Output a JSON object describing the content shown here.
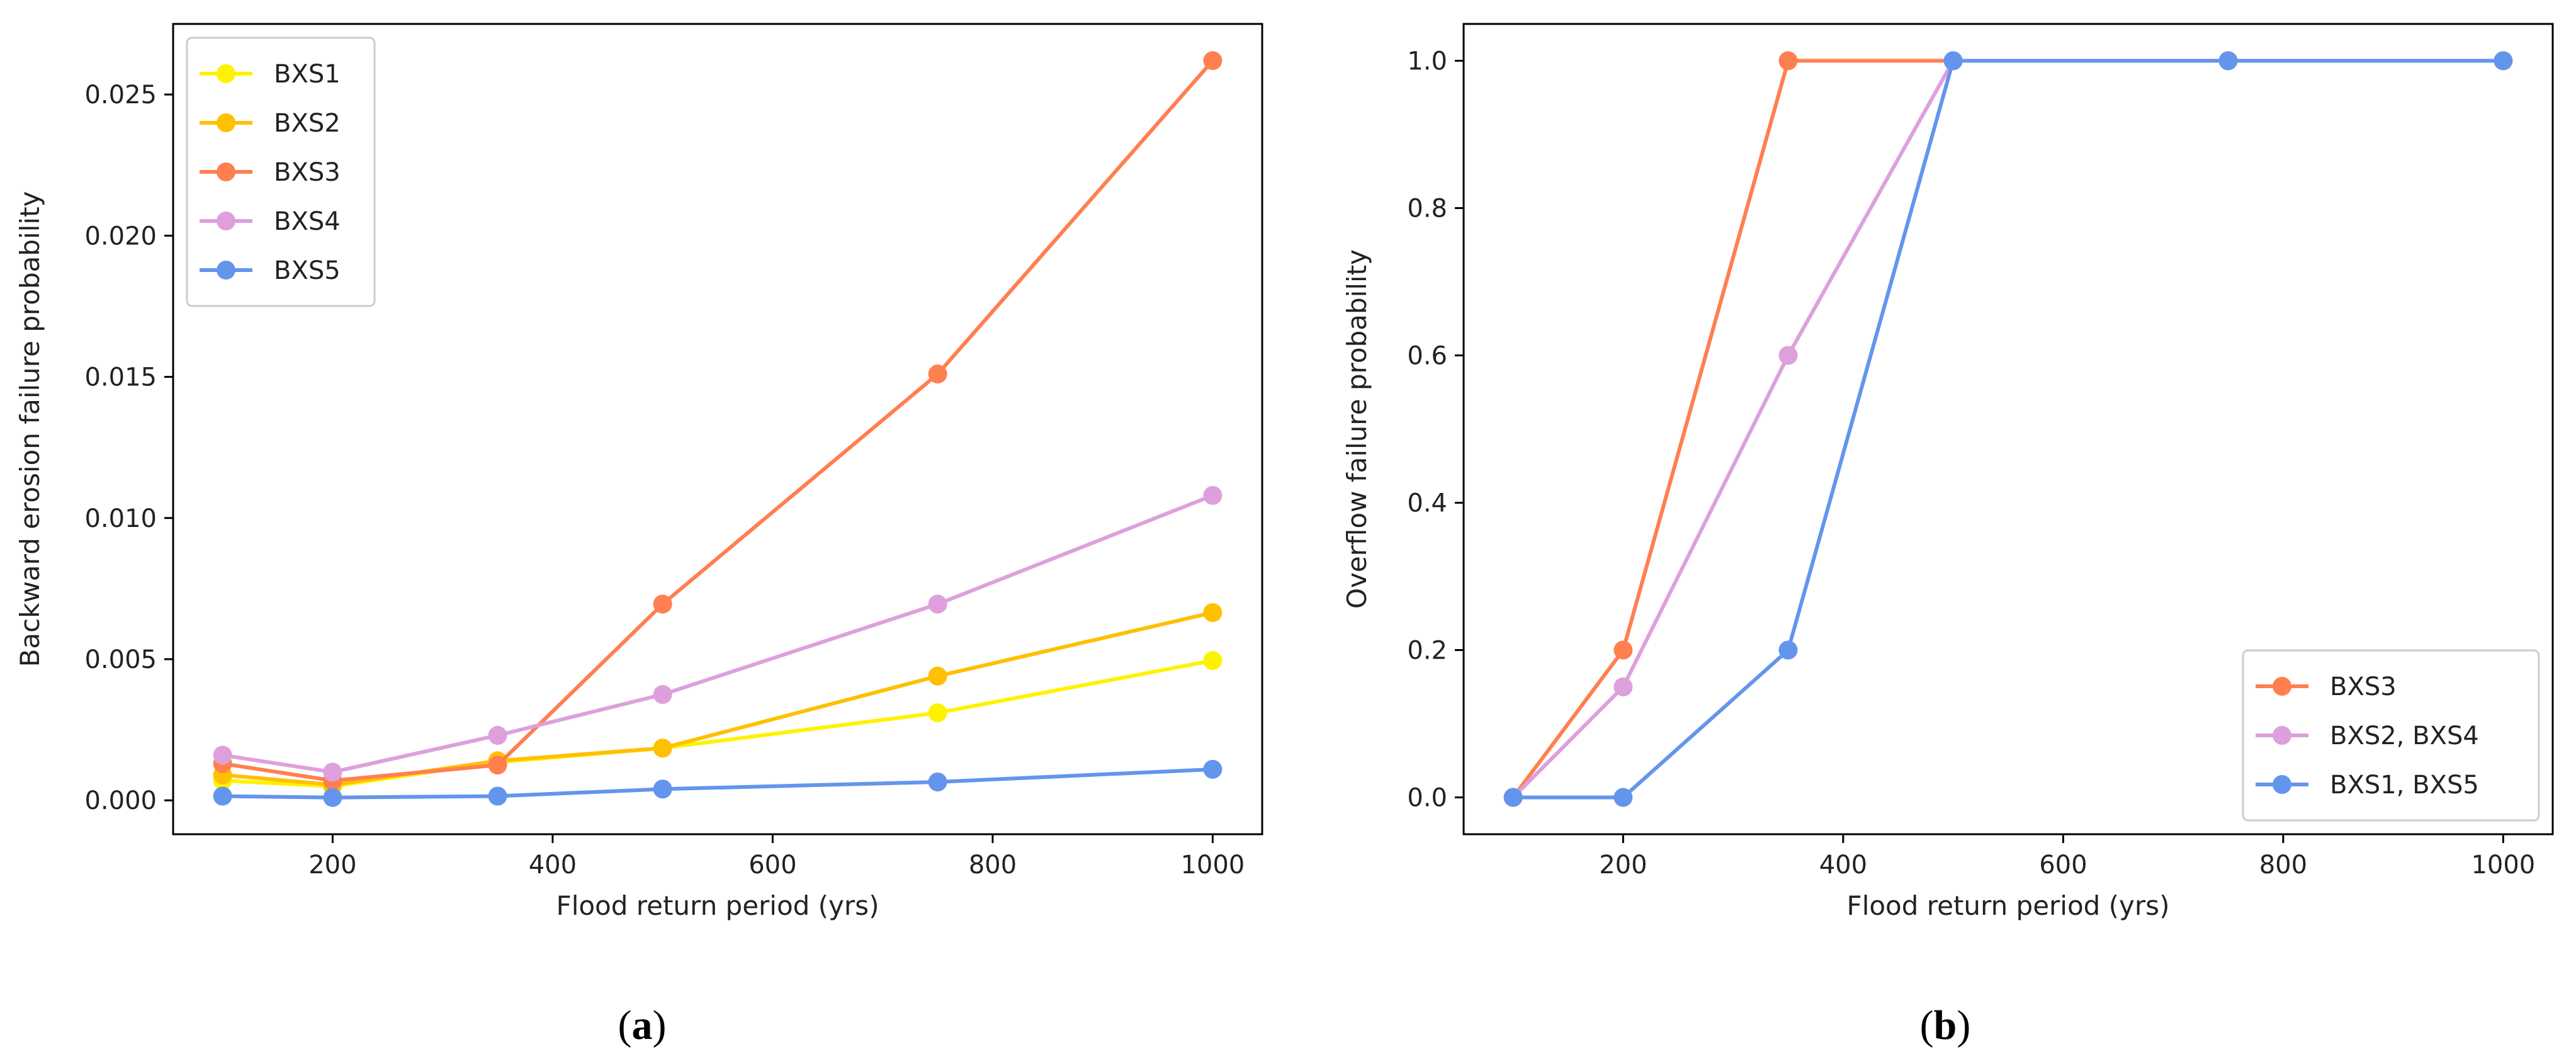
{
  "chart_data": [
    {
      "type": "line",
      "panel_label": {
        "open": "(",
        "letter": "a",
        "close": ")"
      },
      "xlabel": "Flood return period (yrs)",
      "ylabel": "Backward erosion failure probability",
      "x": [
        100,
        200,
        350,
        500,
        750,
        1000
      ],
      "xlim": [
        55,
        1045
      ],
      "ylim": [
        -0.0012,
        0.0275
      ],
      "xticks": [
        200,
        400,
        600,
        800,
        1000
      ],
      "yticks": [
        0.0,
        0.005,
        0.01,
        0.015,
        0.02,
        0.025
      ],
      "ytick_labels": [
        "0.000",
        "0.005",
        "0.010",
        "0.015",
        "0.020",
        "0.025"
      ],
      "legend_position": "top-left",
      "series": [
        {
          "name": "BXS1",
          "color": "#fff200",
          "values": [
            0.0007,
            0.0005,
            0.00135,
            0.00185,
            0.0031,
            0.00495
          ]
        },
        {
          "name": "BXS2",
          "color": "#ffc000",
          "values": [
            0.0009,
            0.00055,
            0.0014,
            0.00185,
            0.0044,
            0.00665
          ]
        },
        {
          "name": "BXS3",
          "color": "#ff7f50",
          "values": [
            0.0013,
            0.0007,
            0.00125,
            0.00695,
            0.0151,
            0.0262
          ]
        },
        {
          "name": "BXS4",
          "color": "#dda0dd",
          "values": [
            0.0016,
            0.001,
            0.0023,
            0.00375,
            0.00695,
            0.0108
          ]
        },
        {
          "name": "BXS5",
          "color": "#6495ed",
          "values": [
            0.00015,
            0.0001,
            0.00015,
            0.0004,
            0.00065,
            0.0011
          ]
        }
      ]
    },
    {
      "type": "line",
      "panel_label": {
        "open": "(",
        "letter": "b",
        "close": ")"
      },
      "xlabel": "Flood return period (yrs)",
      "ylabel": "Overflow failure probability",
      "x": [
        100,
        200,
        350,
        500,
        750,
        1000
      ],
      "xlim": [
        55,
        1045
      ],
      "ylim": [
        -0.05,
        1.05
      ],
      "xticks": [
        200,
        400,
        600,
        800,
        1000
      ],
      "yticks": [
        0.0,
        0.2,
        0.4,
        0.6,
        0.8,
        1.0
      ],
      "ytick_labels": [
        "0.0",
        "0.2",
        "0.4",
        "0.6",
        "0.8",
        "1.0"
      ],
      "legend_position": "bottom-right",
      "series": [
        {
          "name": "BXS3",
          "color": "#ff7f50",
          "values": [
            0.0,
            0.2,
            1.0,
            1.0,
            1.0,
            1.0
          ]
        },
        {
          "name": "BXS2, BXS4",
          "color": "#dda0dd",
          "values": [
            0.0,
            0.15,
            0.6,
            1.0,
            1.0,
            1.0
          ]
        },
        {
          "name": "BXS1, BXS5",
          "color": "#6495ed",
          "values": [
            0.0,
            0.0,
            0.2,
            1.0,
            1.0,
            1.0
          ]
        }
      ]
    }
  ]
}
